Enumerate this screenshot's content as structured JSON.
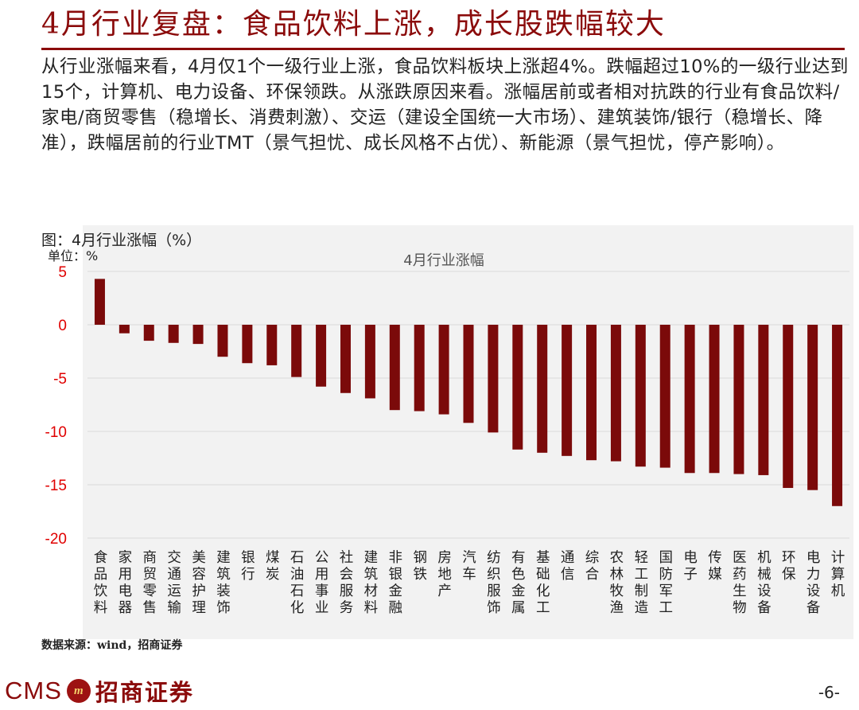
{
  "title": "4月行业复盘：食品饮料上涨，成长股跌幅较大",
  "summary": "从行业涨幅来看，4月仅1个一级行业上涨，食品饮料板块上涨超4%。跌幅超过10%的一级行业达到15个，计算机、电力设备、环保领跌。从涨跌原因来看。涨幅居前或者相对抗跌的行业有食品饮料/家电/商贸零售（稳增长、消费刺激）、交运（建设全国统一大市场）、建筑装饰/银行（稳增长、降准），跌幅居前的行业TMT（景气担忧、成长风格不占优）、新能源（景气担忧，停产影响）。",
  "figure_label": "图：4月行业涨幅（%）",
  "unit_label": "单位：%",
  "source": "数据来源：wind，招商证券",
  "page_number": "-6-",
  "logo": {
    "latin": "CMS",
    "mark": "m",
    "chinese": "招商证券"
  },
  "colors": {
    "bar": "#7b0a0a",
    "axis_text": "#e00000",
    "title": "#8b0b0b",
    "grid": "#d9d9d9",
    "plot_bg": "#f2f2f2"
  },
  "chart_data": {
    "type": "bar",
    "title": "4月行业涨幅",
    "xlabel": "",
    "ylabel": "",
    "ylim": [
      -20,
      5
    ],
    "yticks": [
      5,
      0,
      -5,
      -10,
      -15,
      -20
    ],
    "grid": true,
    "categories": [
      "食品饮料",
      "家用电器",
      "商贸零售",
      "交通运输",
      "美容护理",
      "建筑装饰",
      "银行",
      "煤炭",
      "石油石化",
      "公用事业",
      "社会服务",
      "建筑材料",
      "非银金融",
      "钢铁",
      "房地产",
      "汽车",
      "纺织服饰",
      "有色金属",
      "基础化工",
      "通信",
      "综合",
      "农林牧渔",
      "轻工制造",
      "国防军工",
      "电子",
      "传媒",
      "医药生物",
      "机械设备",
      "环保",
      "电力设备",
      "计算机"
    ],
    "values": [
      4.3,
      -0.8,
      -1.5,
      -1.7,
      -1.8,
      -3.0,
      -3.6,
      -3.8,
      -4.9,
      -5.8,
      -6.4,
      -6.9,
      -8.0,
      -8.1,
      -8.4,
      -9.2,
      -10.1,
      -11.7,
      -12.0,
      -12.3,
      -12.7,
      -12.8,
      -13.3,
      -13.4,
      -13.9,
      -13.9,
      -14.0,
      -14.1,
      -15.3,
      -15.5,
      -17.0
    ]
  }
}
